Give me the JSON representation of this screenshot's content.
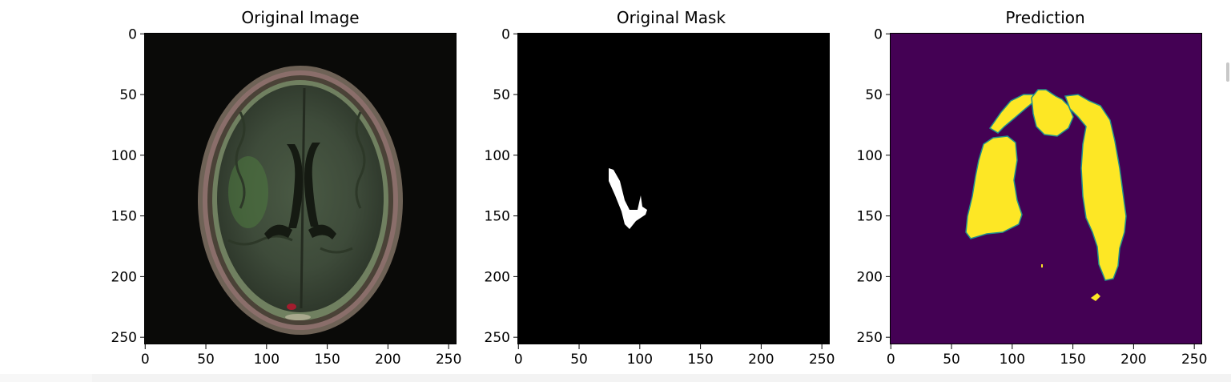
{
  "panels": [
    {
      "id": "original-image",
      "title": "Original Image",
      "xticks": [
        "0",
        "50",
        "100",
        "150",
        "200",
        "250"
      ],
      "yticks": [
        "0",
        "50",
        "100",
        "150",
        "200",
        "250"
      ]
    },
    {
      "id": "original-mask",
      "title": "Original Mask",
      "xticks": [
        "0",
        "50",
        "100",
        "150",
        "200",
        "250"
      ],
      "yticks": [
        "0",
        "50",
        "100",
        "150",
        "200",
        "250"
      ]
    },
    {
      "id": "prediction",
      "title": "Prediction",
      "xticks": [
        "0",
        "50",
        "100",
        "150",
        "200",
        "250"
      ],
      "yticks": [
        "0",
        "50",
        "100",
        "150",
        "200",
        "250"
      ]
    }
  ],
  "colors": {
    "mask_background": "#000000",
    "mask_foreground": "#ffffff",
    "prediction_background": "#440154",
    "prediction_foreground": "#fde725",
    "prediction_edge": "#21918c"
  },
  "axis_range": {
    "x": [
      0,
      256
    ],
    "y": [
      256,
      0
    ]
  }
}
